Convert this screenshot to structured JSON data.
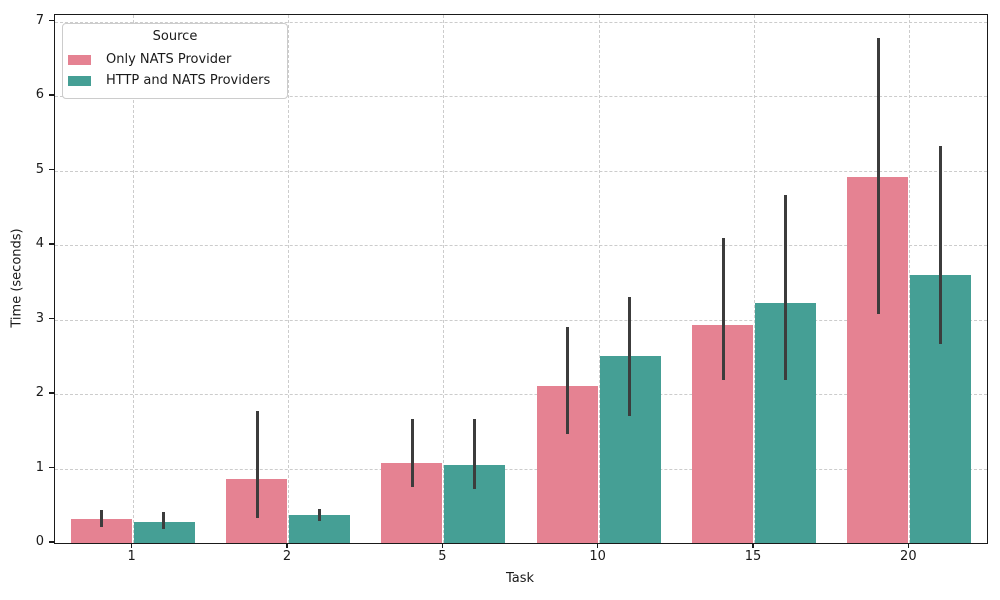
{
  "chart_data": {
    "type": "bar",
    "title": "",
    "xlabel": "Task",
    "ylabel": "Time (seconds)",
    "categories": [
      "1",
      "2",
      "5",
      "10",
      "15",
      "20"
    ],
    "series": [
      {
        "name": "Only NATS Provider",
        "color": "#e58292",
        "values": [
          0.32,
          0.86,
          1.08,
          2.11,
          2.93,
          4.91
        ],
        "ci_low": [
          0.21,
          0.33,
          0.75,
          1.46,
          2.19,
          3.07
        ],
        "ci_high": [
          0.44,
          1.77,
          1.66,
          2.9,
          4.1,
          6.78
        ]
      },
      {
        "name": "HTTP and NATS Providers",
        "color": "#459f95",
        "values": [
          0.28,
          0.37,
          1.05,
          2.51,
          3.22,
          3.6
        ],
        "ci_low": [
          0.19,
          0.3,
          0.72,
          1.7,
          2.19,
          2.67
        ],
        "ci_high": [
          0.42,
          0.45,
          1.66,
          3.3,
          4.67,
          5.33
        ]
      }
    ],
    "yticks": [
      0,
      1,
      2,
      3,
      4,
      5,
      6,
      7
    ],
    "ylim": [
      0,
      7.09
    ],
    "grid": {
      "show": true,
      "style": "dashed",
      "color": "#cccccc",
      "axes": "both"
    },
    "legend": {
      "title": "Source",
      "position": "upper-left"
    },
    "error_bar_color": "#3c3c3c"
  }
}
